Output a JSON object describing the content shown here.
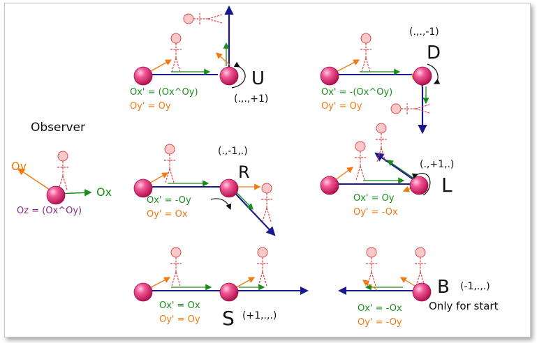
{
  "colors": {
    "stick": "#e04848",
    "axis_x": "#1a8c1a",
    "axis_y": "#f07a10",
    "axis_z": "#8a2b8a",
    "track": "#1a1a8c",
    "ball": "#e8357a",
    "label": "#111111"
  },
  "observer": {
    "title": "Observer",
    "oy": "Oy",
    "ox": "Ox",
    "oz": "Oz = (Ox^Oy)"
  },
  "moves": {
    "U": {
      "letter": "U",
      "code": "(.,.,+1)",
      "ox": "Ox' = (Ox^Oy)",
      "oy": "Oy' = Oy"
    },
    "D": {
      "letter": "D",
      "code": "(.,.,-1)",
      "ox": "Ox' = -(Ox^Oy)",
      "oy": "Oy' = Oy"
    },
    "R": {
      "letter": "R",
      "code": "(.,-1,.)",
      "ox": "Ox' = -Oy",
      "oy": "Oy' = Ox"
    },
    "L": {
      "letter": "L",
      "code": "(.,+1,.)",
      "ox": "Ox' = Oy",
      "oy": "Oy' = -Ox"
    },
    "S": {
      "letter": "S",
      "code": "(+1,.,.)",
      "ox": "Ox' = Ox",
      "oy": "Oy' = Oy"
    },
    "B": {
      "letter": "B",
      "code": "(-1,.,.)",
      "ox": "Ox' = -Ox",
      "oy": "Oy' = -Oy",
      "note": "Only for start"
    }
  }
}
